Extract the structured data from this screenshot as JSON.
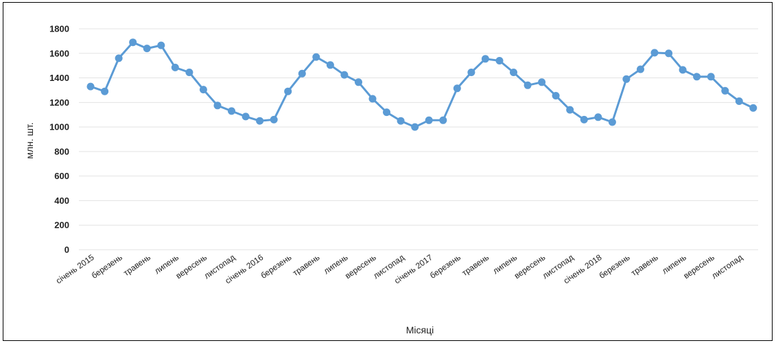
{
  "chart_data": {
    "type": "line",
    "xlabel": "Місяці",
    "ylabel": "млн. шт.",
    "ylim": [
      0,
      1800
    ],
    "yticks": [
      0,
      200,
      400,
      600,
      800,
      1000,
      1200,
      1400,
      1600,
      1800
    ],
    "grid": true,
    "color": "#5B9BD5",
    "tick_labels": [
      "січень 2015",
      "березень",
      "травень",
      "липень",
      "вересень",
      "листопад",
      "січень 2016",
      "березень",
      "травень",
      "липень",
      "вересень",
      "листопад",
      "січень 2017",
      "березень",
      "травень",
      "липень",
      "вересень",
      "листопад",
      "січень 2018",
      "березень",
      "травень",
      "липень",
      "вересень",
      "листопад"
    ],
    "values": [
      1330,
      1290,
      1560,
      1690,
      1640,
      1665,
      1485,
      1445,
      1305,
      1175,
      1130,
      1085,
      1050,
      1060,
      1290,
      1435,
      1570,
      1505,
      1425,
      1365,
      1230,
      1120,
      1050,
      1000,
      1055,
      1055,
      1315,
      1445,
      1555,
      1540,
      1445,
      1340,
      1365,
      1255,
      1140,
      1060,
      1080,
      1040,
      1390,
      1470,
      1605,
      1600,
      1465,
      1410,
      1410,
      1295,
      1210,
      1155
    ]
  }
}
